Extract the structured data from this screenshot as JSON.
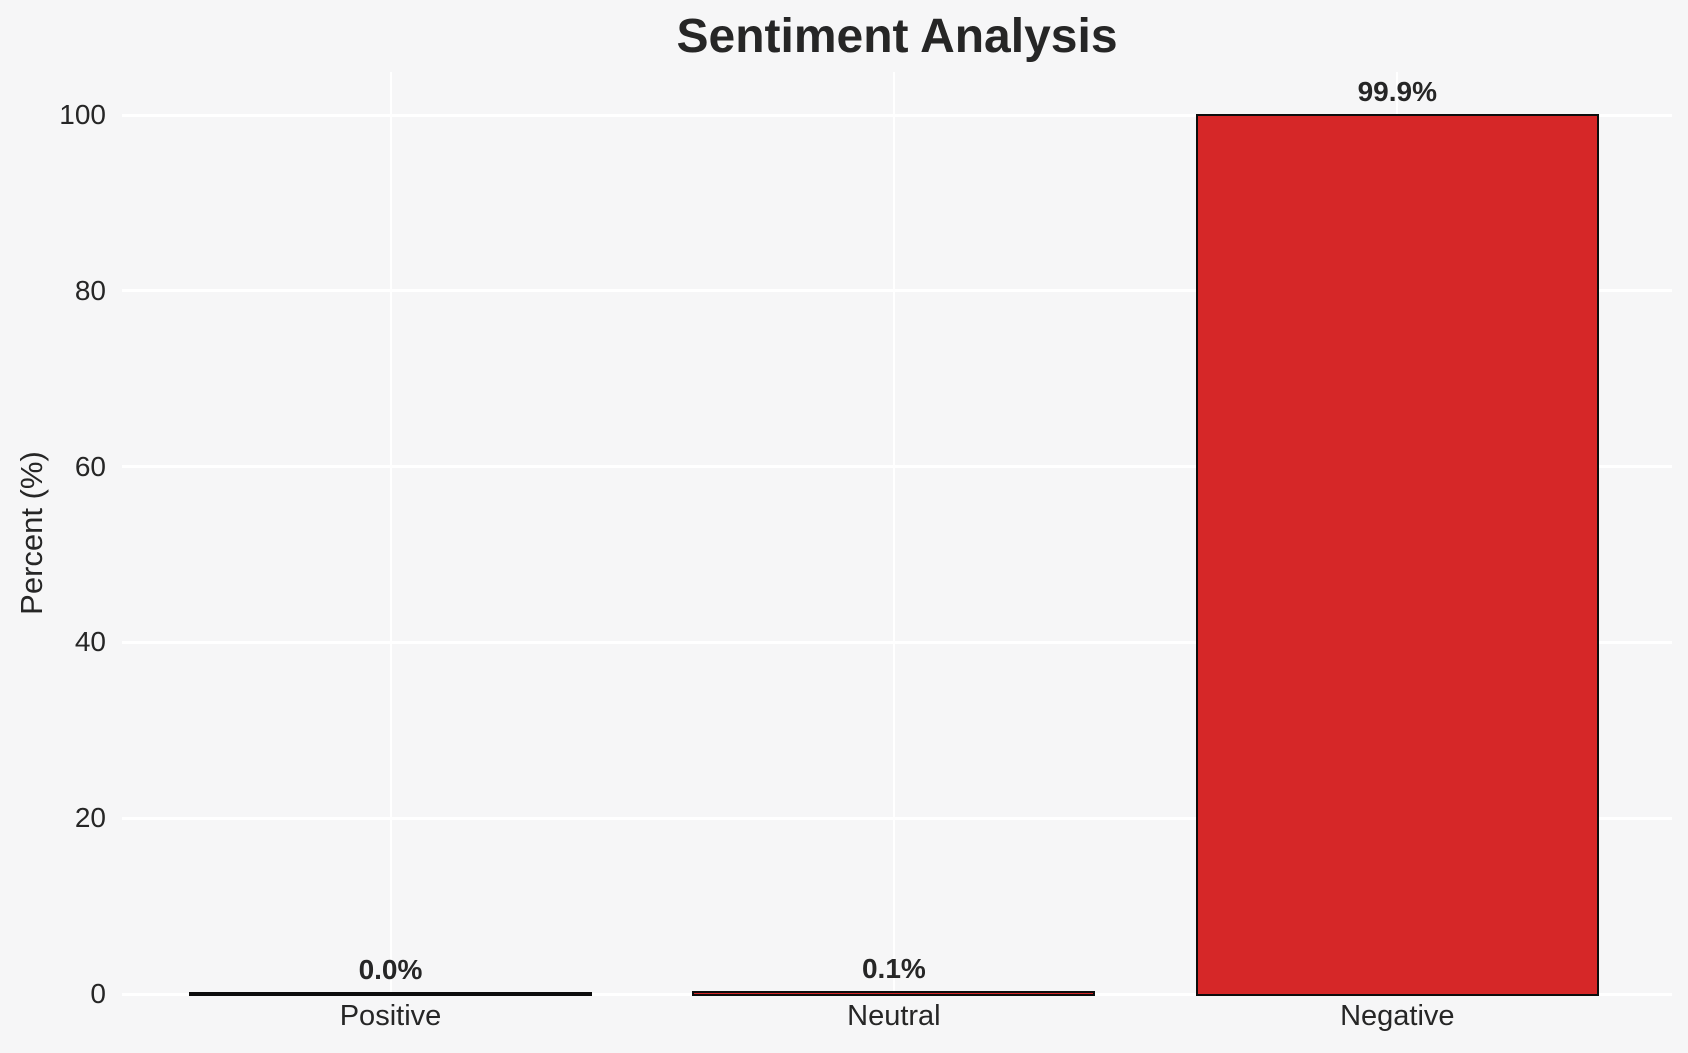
{
  "chart_data": {
    "type": "bar",
    "title": "Sentiment Analysis",
    "ylabel": "Percent (%)",
    "xlabel": "",
    "categories": [
      "Positive",
      "Neutral",
      "Negative"
    ],
    "values": [
      0.0,
      0.1,
      99.9
    ],
    "value_labels": [
      "0.0%",
      "0.1%",
      "99.9%"
    ],
    "yticks": [
      0,
      20,
      40,
      60,
      80,
      100
    ],
    "ytick_labels": [
      "0",
      "20",
      "40",
      "60",
      "80",
      "100"
    ],
    "ylim": [
      0,
      105
    ],
    "grid": true,
    "legend": false,
    "bar_color": "#d62728",
    "bar_edge_color": "#0d0d0d",
    "background_color": "#f6f6f7",
    "gridline_color": "#ffffff",
    "text_color": "#262626"
  }
}
